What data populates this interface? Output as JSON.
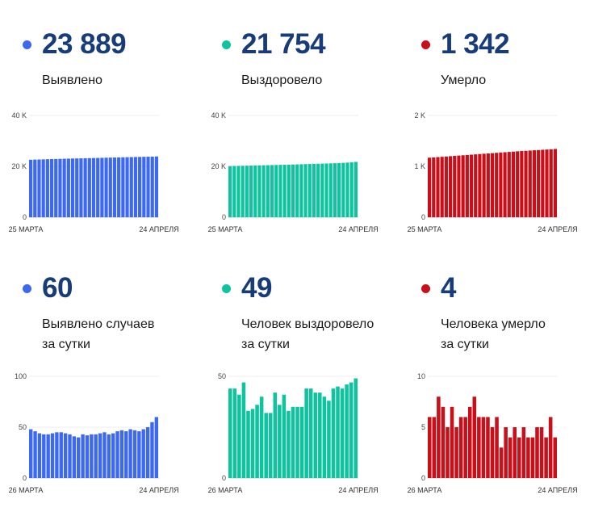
{
  "colors": {
    "blue": "#3d68f0",
    "green": "#0ec49e",
    "red": "#c8101b",
    "value_text": "#183c7a"
  },
  "panels": [
    {
      "value": "23 889",
      "label_lines": [
        "Выявлено"
      ],
      "color": "#3d68f0"
    },
    {
      "value": "21 754",
      "label_lines": [
        "Выздоровело"
      ],
      "color": "#0ec49e"
    },
    {
      "value": "1 342",
      "label_lines": [
        "Умерло"
      ],
      "color": "#c8101b"
    },
    {
      "value": "60",
      "label_lines": [
        "Выявлено случаев",
        "за сутки"
      ],
      "color": "#3d68f0"
    },
    {
      "value": "49",
      "label_lines": [
        "Человек выздоровело",
        "за сутки"
      ],
      "color": "#0ec49e"
    },
    {
      "value": "4",
      "label_lines": [
        "Человека умерло",
        "за сутки"
      ],
      "color": "#c8101b"
    }
  ],
  "chart_data": [
    {
      "type": "bar",
      "color": "#3d68f0",
      "ylim": [
        0,
        40000
      ],
      "y_ticks": [
        0,
        20000,
        40000
      ],
      "y_tick_labels": [
        "0",
        "20 K",
        "40 K"
      ],
      "x_start_label": "25 МАРТА",
      "x_end_label": "24 АПРЕЛЯ",
      "values": [
        22600,
        22650,
        22700,
        22750,
        22800,
        22850,
        22900,
        22950,
        23000,
        23040,
        23080,
        23120,
        23160,
        23200,
        23240,
        23280,
        23320,
        23360,
        23400,
        23440,
        23480,
        23520,
        23560,
        23600,
        23640,
        23680,
        23720,
        23760,
        23800,
        23830,
        23889
      ]
    },
    {
      "type": "bar",
      "color": "#0ec49e",
      "ylim": [
        0,
        40000
      ],
      "y_ticks": [
        0,
        20000,
        40000
      ],
      "y_tick_labels": [
        "0",
        "20 K",
        "40 K"
      ],
      "x_start_label": "25 МАРТА",
      "x_end_label": "24 АПРЕЛЯ",
      "values": [
        20100,
        20150,
        20190,
        20230,
        20270,
        20310,
        20350,
        20390,
        20430,
        20470,
        20510,
        20550,
        20590,
        20630,
        20680,
        20730,
        20780,
        20830,
        20880,
        20930,
        20980,
        21030,
        21080,
        21130,
        21180,
        21240,
        21300,
        21380,
        21480,
        21600,
        21754
      ]
    },
    {
      "type": "bar",
      "color": "#c8101b",
      "ylim": [
        0,
        2000
      ],
      "y_ticks": [
        0,
        1000,
        2000
      ],
      "y_tick_labels": [
        "0",
        "1 K",
        "2 K"
      ],
      "x_start_label": "25 МАРТА",
      "x_end_label": "24 АПРЕЛЯ",
      "values": [
        1170,
        1176,
        1182,
        1188,
        1194,
        1200,
        1206,
        1212,
        1218,
        1224,
        1230,
        1236,
        1242,
        1248,
        1254,
        1260,
        1266,
        1272,
        1278,
        1284,
        1290,
        1296,
        1301,
        1306,
        1311,
        1316,
        1321,
        1326,
        1331,
        1336,
        1342
      ]
    },
    {
      "type": "bar",
      "color": "#3d68f0",
      "ylim": [
        0,
        100
      ],
      "y_ticks": [
        0,
        50,
        100
      ],
      "y_tick_labels": [
        "0",
        "50",
        "100"
      ],
      "x_start_label": "26 МАРТА",
      "x_end_label": "24 АПРЕЛЯ",
      "values": [
        48,
        46,
        44,
        43,
        43,
        44,
        45,
        45,
        44,
        43,
        41,
        40,
        43,
        42,
        43,
        43,
        44,
        45,
        43,
        44,
        46,
        47,
        46,
        48,
        47,
        46,
        48,
        50,
        55,
        60
      ]
    },
    {
      "type": "bar",
      "color": "#0ec49e",
      "ylim": [
        0,
        50
      ],
      "y_ticks": [
        0,
        50
      ],
      "y_tick_labels": [
        "0",
        "50"
      ],
      "x_start_label": "26 МАРТА",
      "x_end_label": "24 АПРЕЛЯ",
      "values": [
        44,
        44,
        41,
        47,
        33,
        34,
        36,
        40,
        32,
        32,
        42,
        36,
        41,
        33,
        35,
        35,
        35,
        44,
        44,
        42,
        42,
        40,
        38,
        44,
        45,
        44,
        46,
        47,
        49
      ]
    },
    {
      "type": "bar",
      "color": "#c8101b",
      "ylim": [
        0,
        10
      ],
      "y_ticks": [
        0,
        5,
        10
      ],
      "y_tick_labels": [
        "0",
        "5",
        "10"
      ],
      "x_start_label": "26 МАРТА",
      "x_end_label": "24 АПРЕЛЯ",
      "values": [
        6,
        6,
        8,
        7,
        5,
        7,
        5,
        6,
        6,
        7,
        8,
        6,
        6,
        6,
        5,
        6,
        3,
        5,
        4,
        5,
        4,
        5,
        4,
        4,
        5,
        5,
        4,
        6,
        4
      ]
    }
  ]
}
